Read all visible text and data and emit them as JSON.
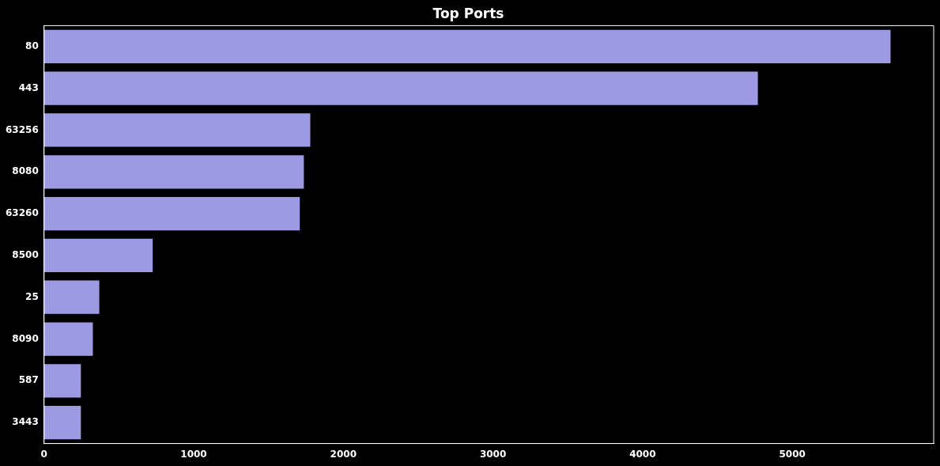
{
  "chart_data": {
    "type": "bar",
    "title": "Top Ports",
    "orientation": "horizontal",
    "categories": [
      "80",
      "443",
      "63256",
      "8080",
      "63260",
      "8500",
      "25",
      "8090",
      "587",
      "3443"
    ],
    "values": [
      5657,
      4770,
      1779,
      1736,
      1709,
      726,
      369,
      326,
      246,
      246
    ],
    "color": "#9d9ae4",
    "xlim": [
      0,
      5945
    ],
    "xticks": [
      0,
      1000,
      2000,
      3000,
      4000,
      5000
    ],
    "grid": false,
    "legend": false
  }
}
